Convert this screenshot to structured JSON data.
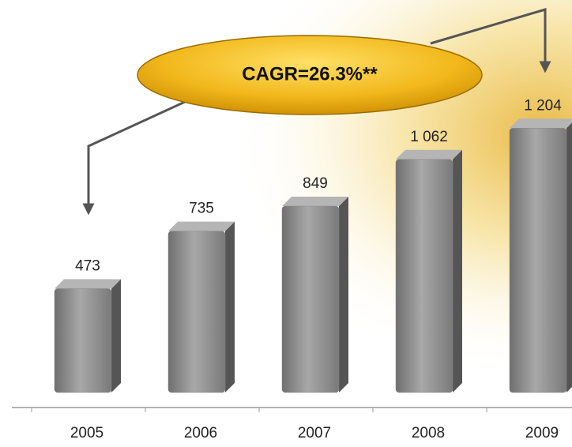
{
  "chart_data": {
    "type": "bar",
    "annotation": "CAGR=26.3%**",
    "categories": [
      "2005",
      "2006",
      "2007",
      "2008",
      "2009"
    ],
    "values": [
      473,
      735,
      849,
      1062,
      1204
    ],
    "value_labels": [
      "473",
      "735",
      "849",
      "1 062",
      "1 204"
    ],
    "color": "#8a8a8a"
  }
}
